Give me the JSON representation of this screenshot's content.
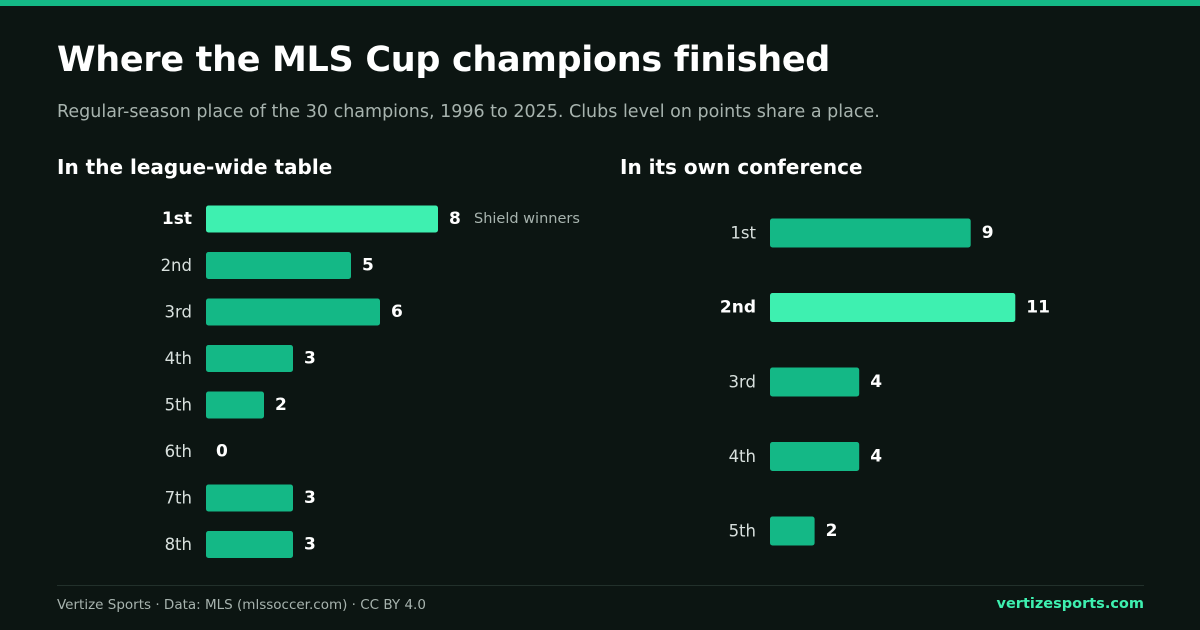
{
  "title": "Where the MLS Cup champions finished",
  "subtitle": "Regular-season place of the 30 champions, 1996 to 2025. Clubs level on points share a place.",
  "colors": {
    "background": "#0c1512",
    "bar": "#14b886",
    "highlight": "#3ef0b0",
    "text": "#ffffff",
    "muted": "#a7b3ae"
  },
  "chart_data": [
    {
      "type": "bar",
      "orientation": "horizontal",
      "title": "In the league-wide table",
      "categories": [
        "1st",
        "2nd",
        "3rd",
        "4th",
        "5th",
        "6th",
        "7th",
        "8th"
      ],
      "values": [
        8,
        5,
        6,
        3,
        2,
        0,
        3,
        3
      ],
      "highlight": "1st",
      "annotations": [
        {
          "category": "1st",
          "text": "Shield winners"
        }
      ]
    },
    {
      "type": "bar",
      "orientation": "horizontal",
      "title": "In its own conference",
      "categories": [
        "1st",
        "2nd",
        "3rd",
        "4th",
        "5th"
      ],
      "values": [
        9,
        11,
        4,
        4,
        2
      ],
      "highlight": "2nd",
      "annotations": []
    }
  ],
  "footer": {
    "credit": "Vertize Sports · Data: MLS (mlssoccer.com) · CC BY 4.0",
    "site": "vertizesports.com"
  }
}
